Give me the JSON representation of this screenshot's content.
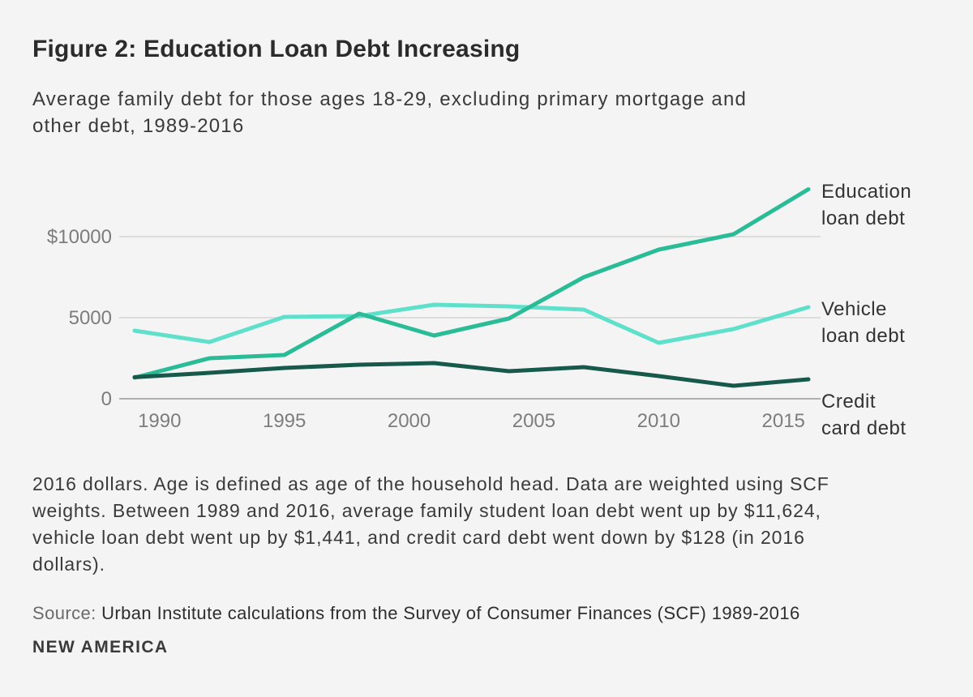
{
  "figure": {
    "title": "Figure 2: Education Loan Debt Increasing",
    "subtitle_lines": [
      "Average family debt for those ages 18-29, excluding primary mortgage and",
      "other debt, 1989-2016"
    ],
    "footnote_lines": [
      "2016 dollars. Age is defined as age of the household head. Data are weighted using SCF",
      "weights. Between 1989 and 2016, average family student loan debt went up by $11,624,",
      "vehicle loan debt went up by $1,441, and credit card debt went down by $128 (in 2016",
      "dollars)."
    ],
    "source_label": "Source:",
    "source_text": "Urban Institute calculations from the Survey of Consumer Finances (SCF) 1989-2016",
    "logo": "NEW AMERICA"
  },
  "colors": {
    "background": "#f4f4f5",
    "education": "#2abc96",
    "vehicle": "#5fe0cb",
    "credit": "#17594a",
    "gridline": "#dddddd",
    "zeroline": "#b0b0b0",
    "axis_text": "#7d7d7d",
    "title_text": "#2b2b2b",
    "body_text": "#3a3a3a"
  },
  "chart_data": {
    "type": "line",
    "title": "Figure 2: Education Loan Debt Increasing",
    "subtitle": "Average family debt for those ages 18-29, excluding primary mortgage and other debt, 1989-2016",
    "xlabel": "",
    "ylabel": "",
    "units": "2016 dollars",
    "grid": "horizontal",
    "legend_position": "right-of-lines",
    "xlim": [
      1989,
      2016
    ],
    "ylim": [
      0,
      13100
    ],
    "x": [
      1989,
      1992,
      1995,
      1998,
      2001,
      2004,
      2007,
      2010,
      2013,
      2016
    ],
    "series": [
      {
        "name": "Education loan debt",
        "label_lines": [
          "Education",
          "loan debt"
        ],
        "color_key": "education",
        "label_offset": -14,
        "values": [
          1300,
          2500,
          2700,
          5250,
          3900,
          4950,
          7500,
          9200,
          10150,
          12925
        ]
      },
      {
        "name": "Vehicle loan debt",
        "label_lines": [
          "Vehicle",
          "loan debt"
        ],
        "color_key": "vehicle",
        "label_offset": -14,
        "values": [
          4200,
          3500,
          5050,
          5100,
          5800,
          5700,
          5500,
          3450,
          4300,
          5650
        ]
      },
      {
        "name": "Credit card debt",
        "label_lines": [
          "Credit",
          "card debt"
        ],
        "color_key": "credit",
        "label_offset": 11,
        "values": [
          1330,
          1600,
          1900,
          2100,
          2200,
          1700,
          1950,
          1400,
          800,
          1200
        ]
      }
    ],
    "y_ticks": [
      {
        "value": 0,
        "label": "0"
      },
      {
        "value": 5000,
        "label": "5000"
      },
      {
        "value": 10000,
        "label": "$10000"
      }
    ],
    "x_ticks": [
      {
        "value": 1990,
        "label": "1990"
      },
      {
        "value": 1995,
        "label": "1995"
      },
      {
        "value": 2000,
        "label": "2000"
      },
      {
        "value": 2005,
        "label": "2005"
      },
      {
        "value": 2010,
        "label": "2010"
      },
      {
        "value": 2015,
        "label": "2015"
      }
    ]
  }
}
